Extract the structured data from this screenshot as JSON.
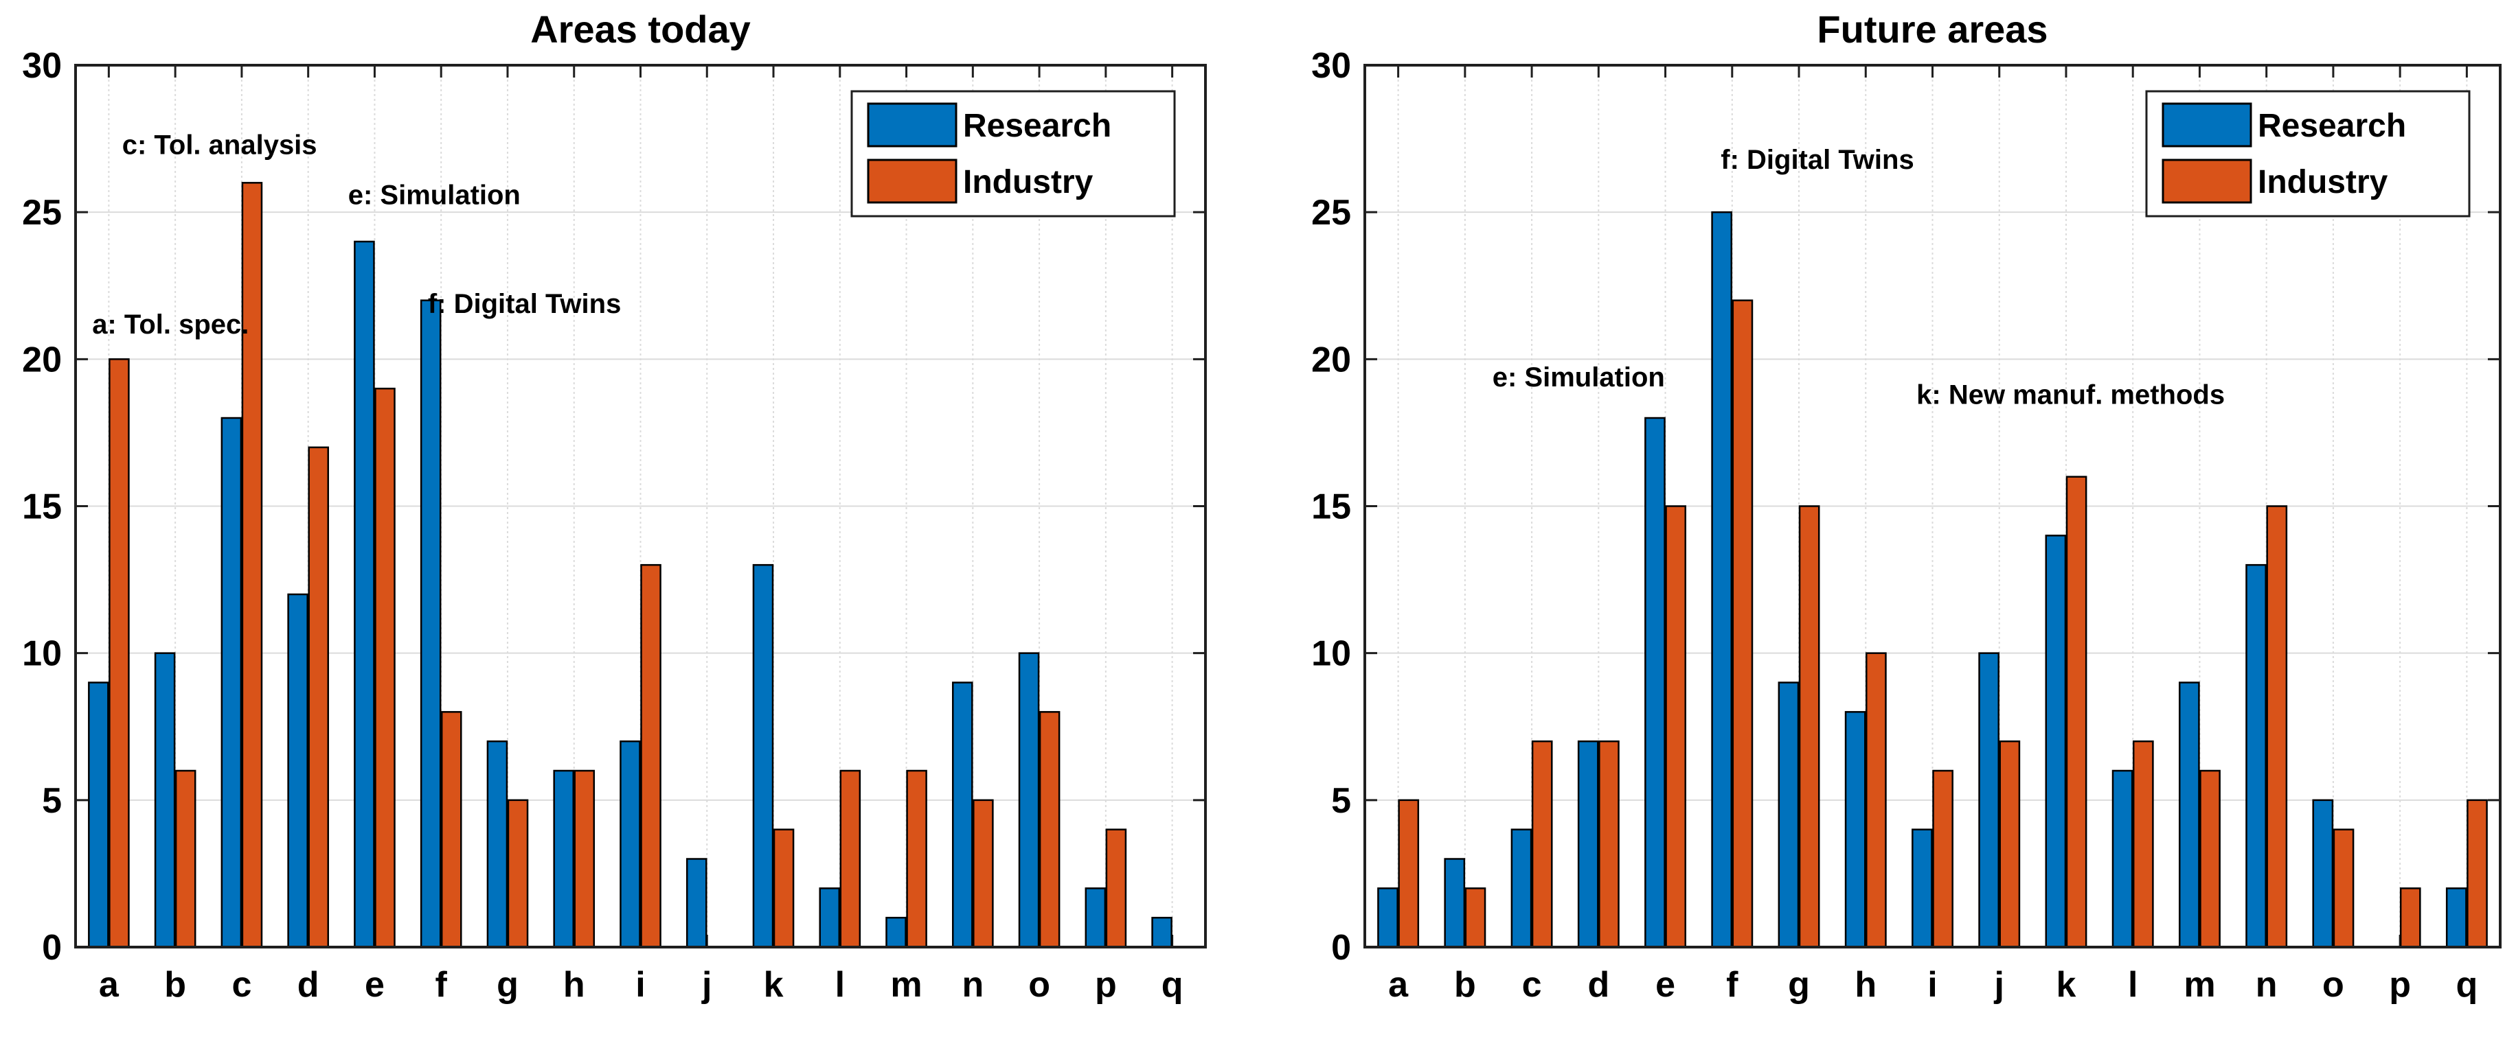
{
  "figure": {
    "background": "#FFFFFF",
    "text_color": "#000000",
    "axis_color": "#1F1F1F",
    "grid_color": "#DBDBDB",
    "legend_labels": [
      "Research",
      "Industry"
    ],
    "series_colors": {
      "research": "#0072BD",
      "industry": "#D95319"
    }
  },
  "chart_data": [
    {
      "type": "bar",
      "title": "Areas today",
      "categories": [
        "a",
        "b",
        "c",
        "d",
        "e",
        "f",
        "g",
        "h",
        "i",
        "j",
        "k",
        "l",
        "m",
        "n",
        "o",
        "p",
        "q"
      ],
      "series": [
        {
          "name": "Research",
          "color": "#0072BD",
          "values": [
            9,
            10,
            18,
            12,
            24,
            22,
            7,
            6,
            7,
            3,
            13,
            2,
            1,
            9,
            10,
            2,
            1
          ]
        },
        {
          "name": "Industry",
          "color": "#D95319",
          "values": [
            20,
            6,
            26,
            17,
            19,
            8,
            5,
            6,
            13,
            0,
            4,
            6,
            6,
            5,
            8,
            4,
            0
          ]
        }
      ],
      "xlabel": "",
      "ylabel": "",
      "ylim": [
        0,
        30
      ],
      "yticks": [
        0,
        5,
        10,
        15,
        20,
        25,
        30
      ],
      "grid": true,
      "legend_position": "top-right",
      "annotations": [
        {
          "text": "a: Tol. spec.",
          "x_cat": 0.25,
          "y_val": 21.2
        },
        {
          "text": "c: Tol. analysis",
          "x_cat": 0.7,
          "y_val": 27.3
        },
        {
          "text": "e: Simulation",
          "x_cat": 4.1,
          "y_val": 25.6
        },
        {
          "text": "f: Digital Twins",
          "x_cat": 5.3,
          "y_val": 21.9
        }
      ]
    },
    {
      "type": "bar",
      "title": "Future areas",
      "categories": [
        "a",
        "b",
        "c",
        "d",
        "e",
        "f",
        "g",
        "h",
        "i",
        "j",
        "k",
        "l",
        "m",
        "n",
        "o",
        "p",
        "q"
      ],
      "series": [
        {
          "name": "Research",
          "color": "#0072BD",
          "values": [
            2,
            3,
            4,
            7,
            18,
            25,
            9,
            8,
            4,
            10,
            14,
            6,
            9,
            13,
            5,
            0,
            2
          ]
        },
        {
          "name": "Industry",
          "color": "#D95319",
          "values": [
            5,
            2,
            7,
            7,
            15,
            22,
            15,
            10,
            6,
            7,
            16,
            7,
            6,
            15,
            4,
            2,
            5
          ]
        }
      ],
      "xlabel": "",
      "ylabel": "",
      "ylim": [
        0,
        30
      ],
      "yticks": [
        0,
        5,
        10,
        15,
        20,
        25,
        30
      ],
      "grid": true,
      "legend_position": "top-right",
      "annotations": [
        {
          "text": "e: Simulation",
          "x_cat": 1.91,
          "y_val": 19.4
        },
        {
          "text": "f: Digital Twins",
          "x_cat": 5.33,
          "y_val": 26.8
        },
        {
          "text": "k: New manuf. methods",
          "x_cat": 8.26,
          "y_val": 18.8
        }
      ]
    }
  ]
}
